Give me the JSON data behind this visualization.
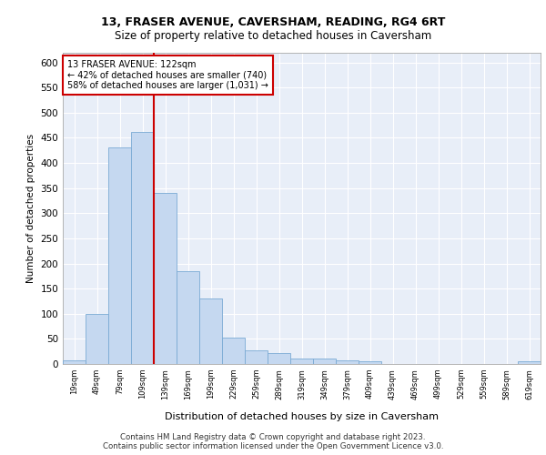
{
  "title1": "13, FRASER AVENUE, CAVERSHAM, READING, RG4 6RT",
  "title2": "Size of property relative to detached houses in Caversham",
  "xlabel": "Distribution of detached houses by size in Caversham",
  "ylabel": "Number of detached properties",
  "bar_color": "#c5d8f0",
  "bar_edge_color": "#7aaad4",
  "background_color": "#e8eef8",
  "grid_color": "#ffffff",
  "categories": [
    "19sqm",
    "49sqm",
    "79sqm",
    "109sqm",
    "139sqm",
    "169sqm",
    "199sqm",
    "229sqm",
    "259sqm",
    "289sqm",
    "319sqm",
    "349sqm",
    "379sqm",
    "409sqm",
    "439sqm",
    "469sqm",
    "499sqm",
    "529sqm",
    "559sqm",
    "589sqm",
    "619sqm"
  ],
  "values": [
    7,
    100,
    430,
    462,
    340,
    185,
    130,
    52,
    27,
    22,
    11,
    11,
    8,
    5,
    0,
    0,
    0,
    0,
    0,
    0,
    5
  ],
  "ylim": [
    0,
    620
  ],
  "yticks": [
    0,
    50,
    100,
    150,
    200,
    250,
    300,
    350,
    400,
    450,
    500,
    550,
    600
  ],
  "property_label": "13 FRASER AVENUE: 122sqm",
  "pct_smaller": 42,
  "count_smaller": 740,
  "pct_larger": 58,
  "count_larger": "1,031",
  "annotation_box_color": "#ffffff",
  "annotation_box_edge": "#cc0000",
  "vline_color": "#cc0000",
  "vline_x": 3.5,
  "footer_line1": "Contains HM Land Registry data © Crown copyright and database right 2023.",
  "footer_line2": "Contains public sector information licensed under the Open Government Licence v3.0."
}
